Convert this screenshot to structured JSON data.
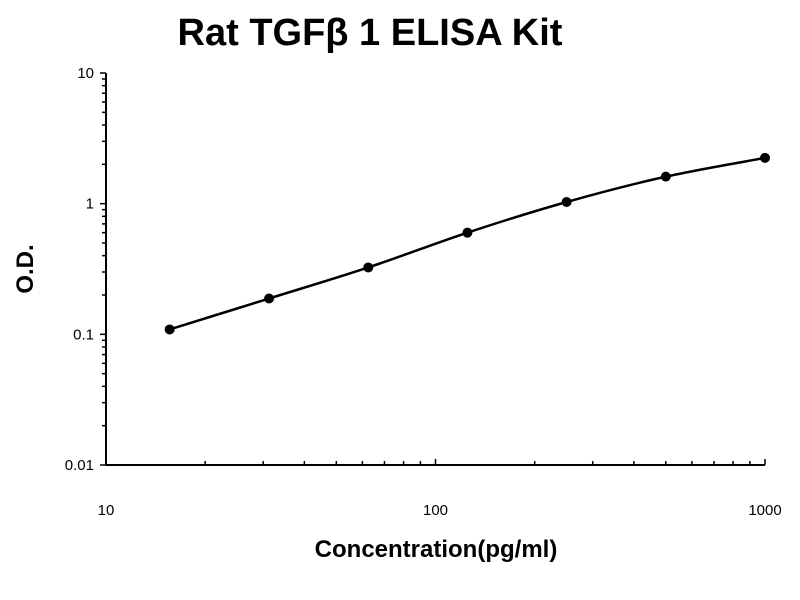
{
  "chart_data": {
    "type": "line",
    "title": "Rat TGFβ 1 ELISA Kit",
    "xlabel": "Concentration(pg/ml)",
    "ylabel": "O.D.",
    "x_scale": "log",
    "y_scale": "log",
    "xlim": [
      10,
      1000
    ],
    "ylim": [
      0.01,
      10
    ],
    "x_ticks": [
      "10",
      "100",
      "1000"
    ],
    "y_ticks": [
      "0.01",
      "0.1",
      "1",
      "10"
    ],
    "grid": false,
    "series": [
      {
        "x": [
          15.6,
          31.25,
          62.5,
          125,
          250,
          500,
          1000
        ],
        "y": [
          0.109,
          0.188,
          0.325,
          0.6,
          1.03,
          1.61,
          2.24
        ],
        "color": "#000000"
      }
    ]
  }
}
